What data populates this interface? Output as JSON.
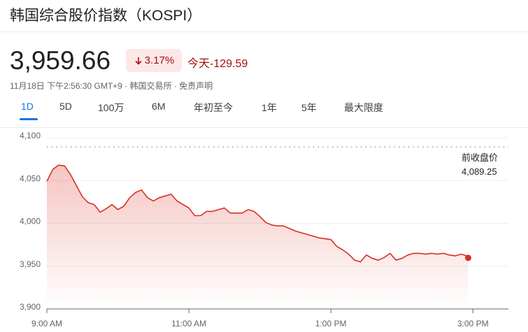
{
  "header": {
    "title": "韩国综合股价指数（KOSPI）",
    "price": "3,959.66",
    "change_pct": "3.17%",
    "change_today": "今天-129.59",
    "meta": "11月18日 下午2:56:30 GMT+9 · 韩国交易所 · 免责声明"
  },
  "tabs": {
    "items": [
      "1D",
      "5D",
      "100万",
      "6M",
      "年初至今",
      "1年",
      "5年",
      "最大限度"
    ],
    "selected": 0
  },
  "chart_data": {
    "type": "line",
    "color": "#d93025",
    "grid": true,
    "x": [
      "9:00 AM",
      "9:05 AM",
      "9:10 AM",
      "9:15 AM",
      "9:20 AM",
      "9:25 AM",
      "9:30 AM",
      "9:35 AM",
      "9:40 AM",
      "9:45 AM",
      "9:50 AM",
      "9:55 AM",
      "10:00 AM",
      "10:05 AM",
      "10:10 AM",
      "10:15 AM",
      "10:20 AM",
      "10:25 AM",
      "10:30 AM",
      "10:35 AM",
      "10:40 AM",
      "10:45 AM",
      "10:50 AM",
      "10:55 AM",
      "11:00 AM",
      "11:05 AM",
      "11:10 AM",
      "11:15 AM",
      "11:20 AM",
      "11:25 AM",
      "11:30 AM",
      "11:35 AM",
      "11:40 AM",
      "11:45 AM",
      "11:50 AM",
      "11:55 AM",
      "12:00 PM",
      "12:05 PM",
      "12:10 PM",
      "12:15 PM",
      "12:20 PM",
      "12:25 PM",
      "12:30 PM",
      "12:35 PM",
      "12:40 PM",
      "12:45 PM",
      "12:50 PM",
      "12:55 PM",
      "1:00 PM",
      "1:05 PM",
      "1:10 PM",
      "1:15 PM",
      "1:20 PM",
      "1:25 PM",
      "1:30 PM",
      "1:35 PM",
      "1:40 PM",
      "1:45 PM",
      "1:50 PM",
      "1:55 PM",
      "2:00 PM",
      "2:05 PM",
      "2:10 PM",
      "2:15 PM",
      "2:20 PM",
      "2:25 PM",
      "2:30 PM",
      "2:35 PM",
      "2:40 PM",
      "2:45 PM",
      "2:50 PM",
      "2:55 PM",
      "2:56 PM"
    ],
    "values": [
      4049,
      4063,
      4068,
      4067,
      4057,
      4044,
      4031,
      4024,
      4022,
      4013,
      4017,
      4022,
      4016,
      4020,
      4030,
      4036,
      4039,
      4030,
      4026,
      4030,
      4032,
      4034,
      4026,
      4022,
      4018,
      4009,
      4009,
      4014,
      4014,
      4016,
      4018,
      4012,
      4012,
      4012,
      4016,
      4014,
      4008,
      4001,
      3998,
      3997,
      3997,
      3994,
      3991,
      3989,
      3987,
      3985,
      3983,
      3982,
      3981,
      3973,
      3969,
      3964,
      3957,
      3955,
      3963,
      3959,
      3957,
      3960,
      3965,
      3957,
      3959,
      3963,
      3965,
      3965,
      3964,
      3965,
      3964,
      3965,
      3963,
      3962,
      3964,
      3962,
      3959.66
    ],
    "xlim": [
      "9:00 AM",
      "3:30 PM"
    ],
    "xticks": [
      "9:00 AM",
      "11:00 AM",
      "1:00 PM",
      "3:00 PM"
    ],
    "ylim": [
      3900,
      4100
    ],
    "yticks": [
      {
        "value": 3900,
        "label": "3,900"
      },
      {
        "value": 3950,
        "label": "3,950"
      },
      {
        "value": 4000,
        "label": "4,000"
      },
      {
        "value": 4050,
        "label": "4,050"
      },
      {
        "value": 4100,
        "label": "4,100"
      }
    ],
    "reference": {
      "label": "前收盘价",
      "value": 4089.25,
      "value_label": "4,089.25"
    }
  }
}
